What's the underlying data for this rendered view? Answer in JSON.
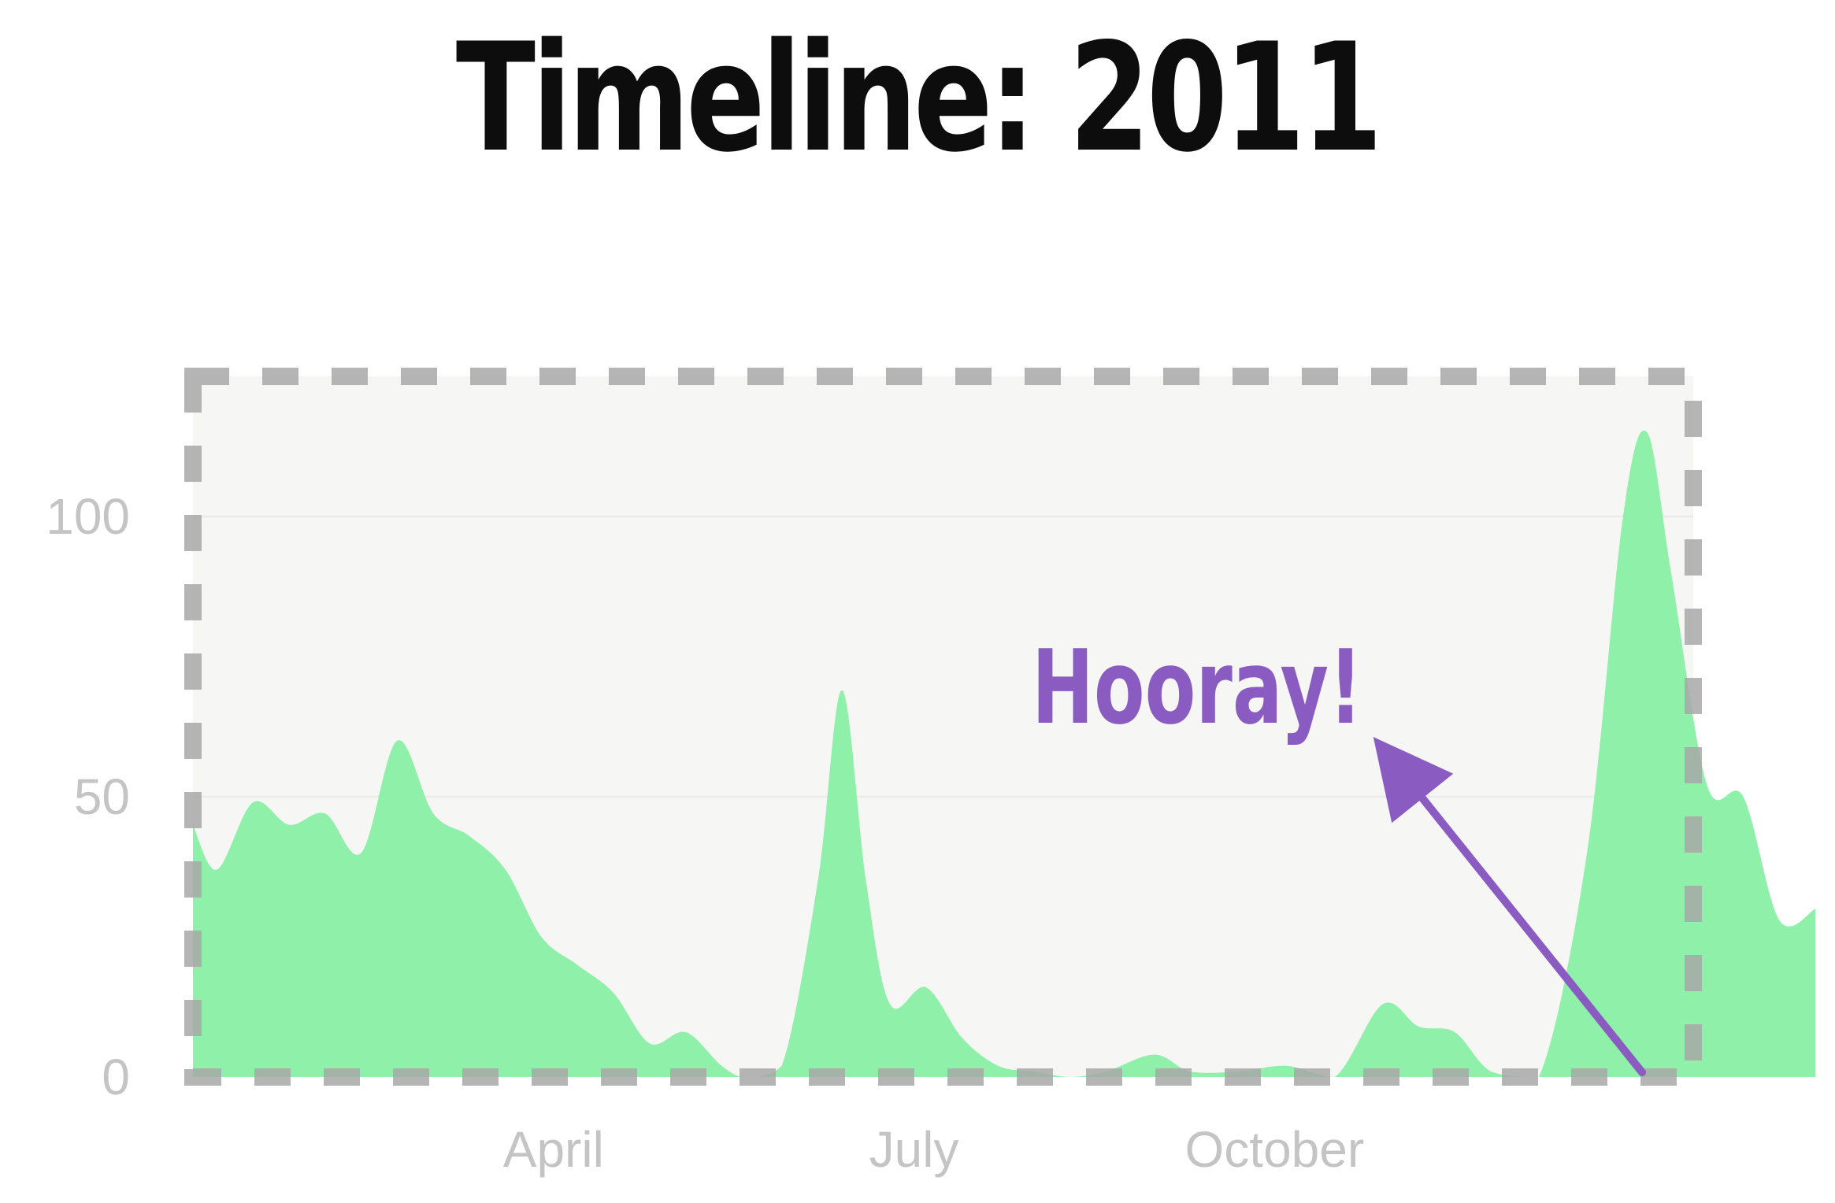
{
  "chart_data": {
    "type": "area",
    "title": "Timeline: 2011",
    "xlabel": "",
    "ylabel": "",
    "x_ticks": [
      {
        "label": "April",
        "month": 4
      },
      {
        "label": "July",
        "month": 7
      },
      {
        "label": "October",
        "month": 10
      }
    ],
    "y_ticks": [
      0,
      50,
      100
    ],
    "ylim": [
      0,
      125
    ],
    "xlim": [
      1,
      14.5
    ],
    "grid": true,
    "series": [
      {
        "color": "#8ff0aa",
        "points": [
          [
            1.0,
            45
          ],
          [
            1.2,
            37
          ],
          [
            1.5,
            49
          ],
          [
            1.8,
            45
          ],
          [
            2.1,
            47
          ],
          [
            2.4,
            40
          ],
          [
            2.7,
            60
          ],
          [
            3.0,
            47
          ],
          [
            3.3,
            43
          ],
          [
            3.6,
            37
          ],
          [
            3.9,
            25
          ],
          [
            4.2,
            20
          ],
          [
            4.5,
            15
          ],
          [
            4.8,
            6
          ],
          [
            5.1,
            8
          ],
          [
            5.4,
            2
          ],
          [
            5.6,
            0
          ],
          [
            5.9,
            2
          ],
          [
            6.2,
            35
          ],
          [
            6.4,
            69
          ],
          [
            6.6,
            35
          ],
          [
            6.8,
            13
          ],
          [
            7.1,
            16
          ],
          [
            7.4,
            7
          ],
          [
            7.7,
            2
          ],
          [
            8.0,
            1
          ],
          [
            8.3,
            0
          ],
          [
            8.6,
            1
          ],
          [
            9.0,
            4
          ],
          [
            9.3,
            1
          ],
          [
            9.7,
            1
          ],
          [
            10.1,
            2
          ],
          [
            10.5,
            0
          ],
          [
            10.9,
            13
          ],
          [
            11.2,
            9
          ],
          [
            11.5,
            8
          ],
          [
            11.8,
            1
          ],
          [
            12.2,
            0
          ],
          [
            12.6,
            40
          ],
          [
            12.9,
            100
          ],
          [
            13.1,
            115
          ],
          [
            13.3,
            90
          ],
          [
            13.6,
            52
          ],
          [
            13.9,
            50
          ],
          [
            14.2,
            28
          ],
          [
            14.5,
            30
          ]
        ]
      }
    ],
    "annotation": {
      "text": "Hooray!",
      "color": "#8a5cc2"
    },
    "highlight_box": {
      "style": "dashed",
      "color": "#a8a8a8",
      "x_range": [
        1.0,
        13.3
      ],
      "y_range": [
        0,
        125
      ]
    }
  }
}
